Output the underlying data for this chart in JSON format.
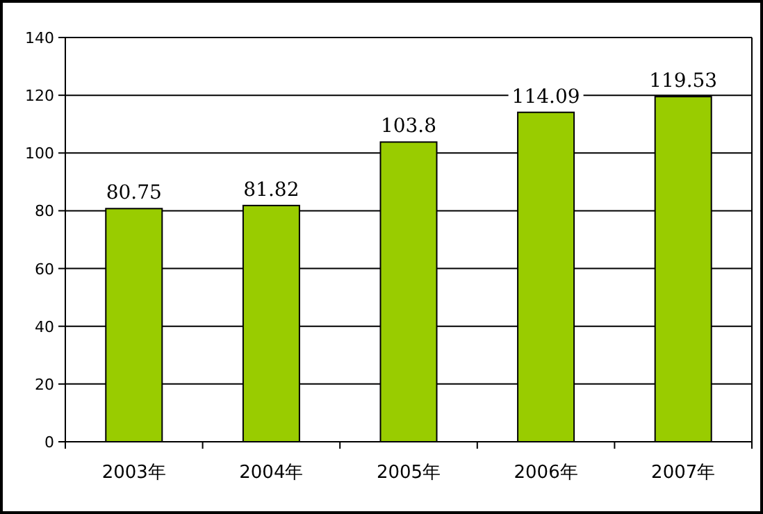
{
  "chart_data": {
    "type": "bar",
    "categories": [
      "2003年",
      "2004年",
      "2005年",
      "2006年",
      "2007年"
    ],
    "values": [
      80.75,
      81.82,
      103.8,
      114.09,
      119.53
    ],
    "color": "#99cc00",
    "ylim": [
      0,
      140
    ],
    "yticks": [
      0,
      20,
      40,
      60,
      80,
      100,
      120,
      140
    ],
    "grid": "y",
    "data_labels": true
  }
}
